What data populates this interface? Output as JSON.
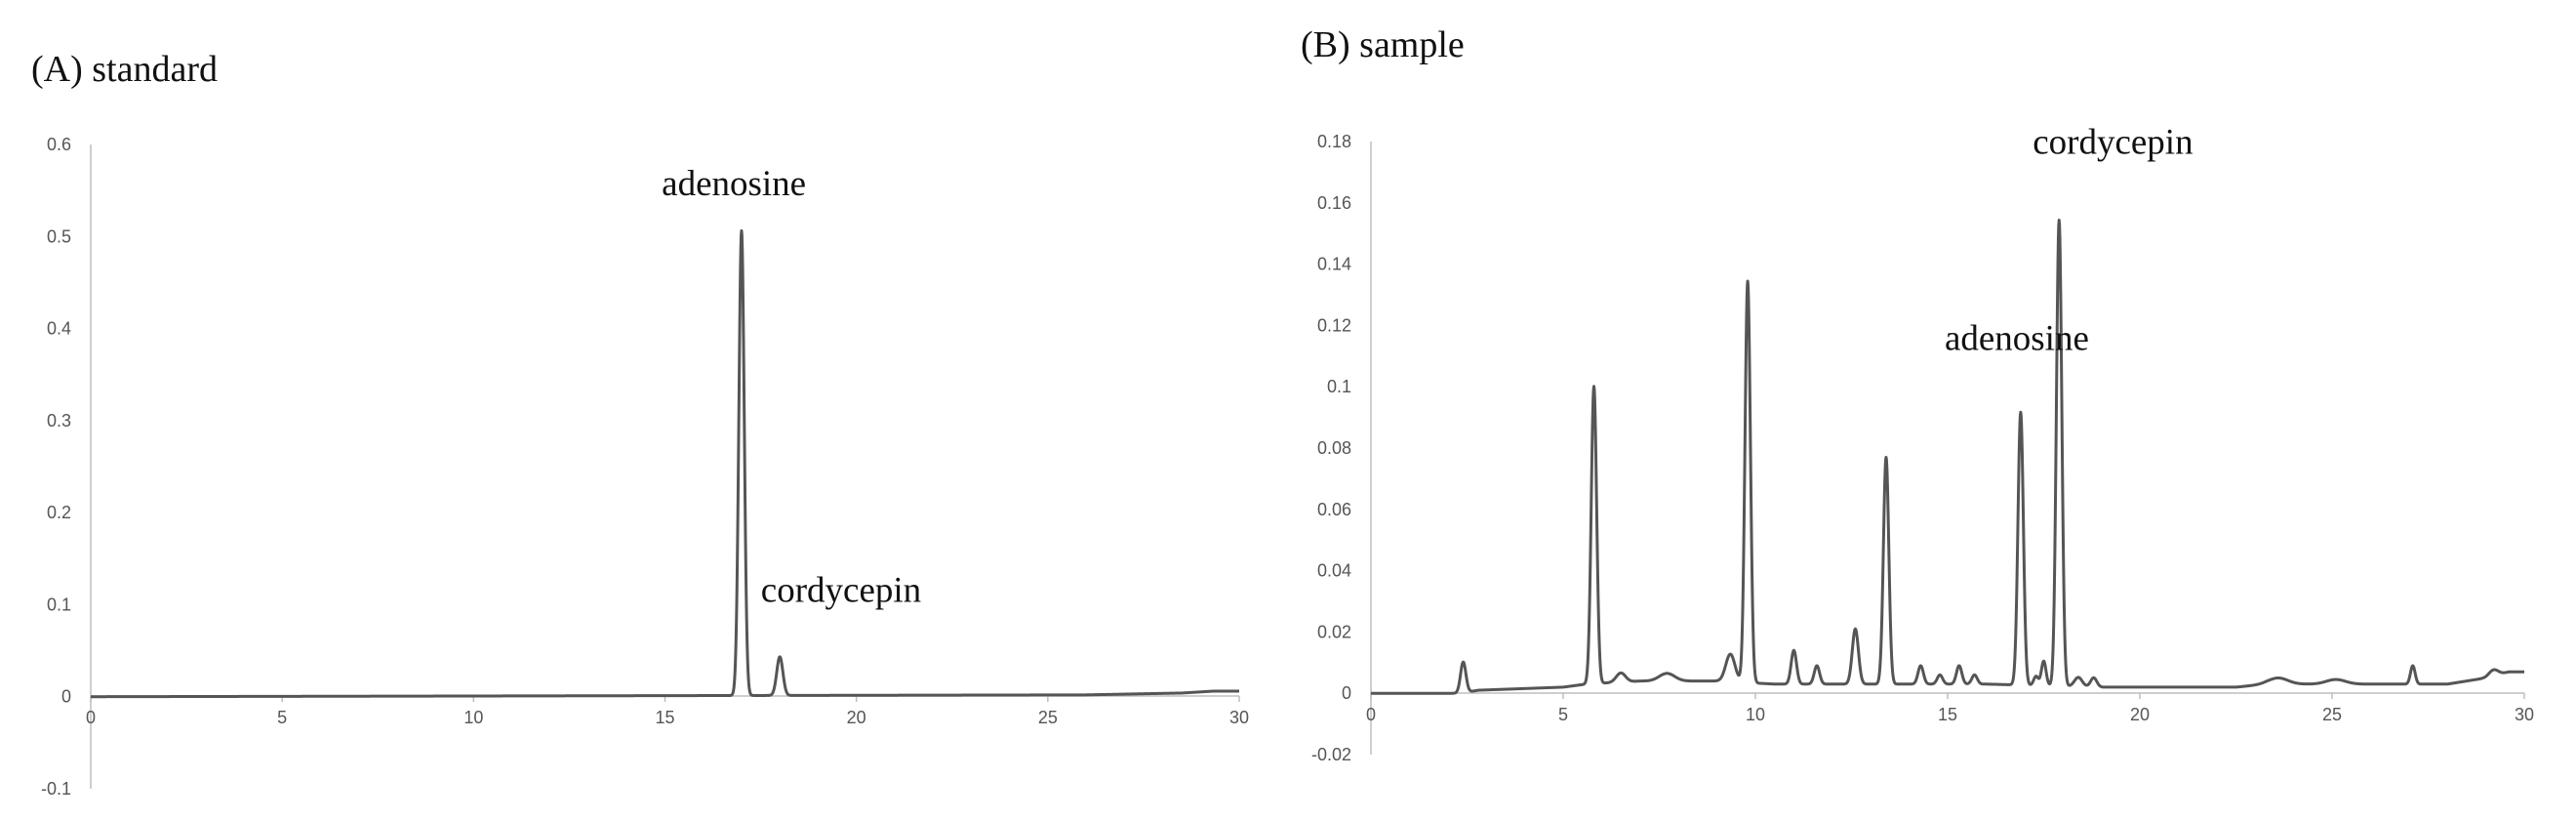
{
  "chart_data": [
    {
      "type": "line",
      "title": "(A) standard",
      "xlim": [
        0,
        30
      ],
      "ylim": [
        -0.1,
        0.6
      ],
      "x_ticks": [
        0,
        5,
        10,
        15,
        20,
        25,
        30
      ],
      "y_ticks": [
        -0.1,
        0,
        0.1,
        0.2,
        0.3,
        0.4,
        0.5,
        0.6
      ],
      "grid": false,
      "baseline": 0,
      "peaks": [
        {
          "x": 17.0,
          "y": 0.505,
          "width": 0.07
        },
        {
          "x": 18.0,
          "y": 0.042,
          "width": 0.08
        }
      ],
      "drift": [
        [
          0,
          0
        ],
        [
          26,
          0.002
        ],
        [
          28.5,
          0.004
        ],
        [
          29.3,
          0.006
        ],
        [
          30,
          0.006
        ]
      ],
      "annotations": [
        {
          "text": "adenosine",
          "x": 16.8,
          "y": 0.545
        },
        {
          "text": "cordycepin",
          "x": 19.6,
          "y": 0.103
        }
      ]
    },
    {
      "type": "line",
      "title": "(B) sample",
      "xlim": [
        0,
        30
      ],
      "ylim": [
        -0.02,
        0.18
      ],
      "x_ticks": [
        0,
        5,
        10,
        15,
        20,
        25,
        30
      ],
      "y_ticks": [
        -0.02,
        0,
        0.02,
        0.04,
        0.06,
        0.08,
        0.1,
        0.12,
        0.14,
        0.16,
        0.18
      ],
      "grid": false,
      "baseline": 0,
      "peaks": [
        {
          "x": 2.4,
          "y": 0.01,
          "width": 0.07
        },
        {
          "x": 5.8,
          "y": 0.097,
          "width": 0.07
        },
        {
          "x": 6.5,
          "y": 0.003,
          "width": 0.12
        },
        {
          "x": 7.7,
          "y": 0.0025,
          "width": 0.2
        },
        {
          "x": 9.35,
          "y": 0.009,
          "width": 0.12
        },
        {
          "x": 9.8,
          "y": 0.131,
          "width": 0.07
        },
        {
          "x": 11.0,
          "y": 0.011,
          "width": 0.07
        },
        {
          "x": 11.6,
          "y": 0.006,
          "width": 0.07
        },
        {
          "x": 12.6,
          "y": 0.018,
          "width": 0.08
        },
        {
          "x": 13.4,
          "y": 0.074,
          "width": 0.07
        },
        {
          "x": 14.3,
          "y": 0.006,
          "width": 0.07
        },
        {
          "x": 14.8,
          "y": 0.003,
          "width": 0.07
        },
        {
          "x": 15.3,
          "y": 0.006,
          "width": 0.07
        },
        {
          "x": 15.7,
          "y": 0.003,
          "width": 0.07
        },
        {
          "x": 16.9,
          "y": 0.089,
          "width": 0.07
        },
        {
          "x": 17.3,
          "y": 0.003,
          "width": 0.06
        },
        {
          "x": 17.5,
          "y": 0.008,
          "width": 0.06
        },
        {
          "x": 17.9,
          "y": 0.152,
          "width": 0.07
        },
        {
          "x": 18.4,
          "y": 0.003,
          "width": 0.1
        },
        {
          "x": 18.8,
          "y": 0.003,
          "width": 0.08
        },
        {
          "x": 23.6,
          "y": 0.002,
          "width": 0.25
        },
        {
          "x": 25.1,
          "y": 0.0015,
          "width": 0.25
        },
        {
          "x": 27.1,
          "y": 0.006,
          "width": 0.06
        },
        {
          "x": 29.2,
          "y": 0.002,
          "width": 0.12
        }
      ],
      "drift": [
        [
          0,
          0
        ],
        [
          2.3,
          0
        ],
        [
          2.8,
          0.001
        ],
        [
          5.0,
          0.002
        ],
        [
          5.6,
          0.003
        ],
        [
          7.0,
          0.004
        ],
        [
          9.0,
          0.004
        ],
        [
          10.5,
          0.003
        ],
        [
          13.0,
          0.003
        ],
        [
          16.0,
          0.003
        ],
        [
          19.0,
          0.002
        ],
        [
          22.5,
          0.002
        ],
        [
          23.3,
          0.003
        ],
        [
          24.5,
          0.003
        ],
        [
          26.0,
          0.003
        ],
        [
          28.0,
          0.003
        ],
        [
          29.0,
          0.005
        ],
        [
          29.6,
          0.007
        ],
        [
          30,
          0.007
        ]
      ],
      "annotations": [
        {
          "text": "cordycepin",
          "x": 19.3,
          "y": 0.176
        },
        {
          "text": "adenosine",
          "x": 16.8,
          "y": 0.112
        }
      ]
    }
  ]
}
